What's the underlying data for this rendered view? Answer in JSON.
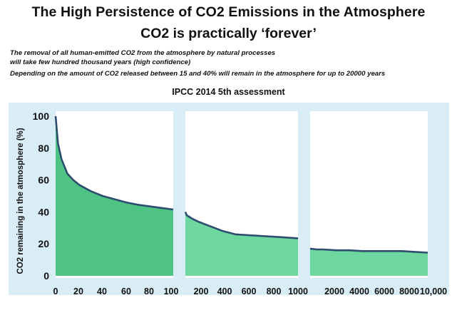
{
  "title_line1": "The High Persistence of CO2 Emissions in the Atmosphere",
  "title_line2": "CO2 is practically ‘forever’",
  "notes": [
    "The removal of all human-emitted CO2 from the atmosphere by natural processes",
    "will take  few hundred thousand years (high confidence)",
    "Depending on the amount of CO2 released  between 15 and 40% will remain in the atmosphere for up to 20000 years"
  ],
  "subtitle": "IPCC  2014 5th assessment",
  "colors": {
    "frame_bg": "#d9edf6",
    "fill_panel1": "#4ec383",
    "fill_panels23": "#6ed7a0",
    "line": "#2c4d6e"
  },
  "chart_data": {
    "type": "area",
    "ylabel": "CO2 remaining in the atmosphere (%)",
    "ylim": [
      0,
      100
    ],
    "yticks": [
      "100",
      "80",
      "60",
      "40",
      "20",
      "0"
    ],
    "grid": false,
    "panels": [
      {
        "xlim": [
          0,
          100
        ],
        "xticks": [
          "0",
          "20",
          "40",
          "60",
          "80",
          "100"
        ],
        "x": [
          0,
          2,
          5,
          10,
          15,
          20,
          30,
          40,
          50,
          60,
          70,
          80,
          90,
          100
        ],
        "y": [
          100,
          83,
          73,
          64,
          60,
          57,
          53,
          50,
          48,
          46,
          44.5,
          43.5,
          42.5,
          41.5
        ]
      },
      {
        "xlim": [
          100,
          1000
        ],
        "xticks": [
          "200",
          "400",
          "600",
          "800",
          "1000"
        ],
        "x": [
          100,
          110,
          150,
          200,
          300,
          400,
          500,
          600,
          700,
          800,
          900,
          1000
        ],
        "y": [
          40,
          38,
          36,
          34,
          31,
          28,
          26,
          25.5,
          25,
          24.5,
          24,
          23.5
        ]
      },
      {
        "xlim": [
          1000,
          10000
        ],
        "xticks": [
          "2000",
          "4000",
          "6000",
          "8000",
          "10,000"
        ],
        "x": [
          1000,
          1500,
          2000,
          3000,
          4000,
          5000,
          6000,
          7000,
          8000,
          9000,
          10000
        ],
        "y": [
          17,
          16.5,
          16.5,
          16,
          16,
          15.5,
          15.5,
          15.5,
          15.5,
          15,
          14.5
        ]
      }
    ]
  }
}
